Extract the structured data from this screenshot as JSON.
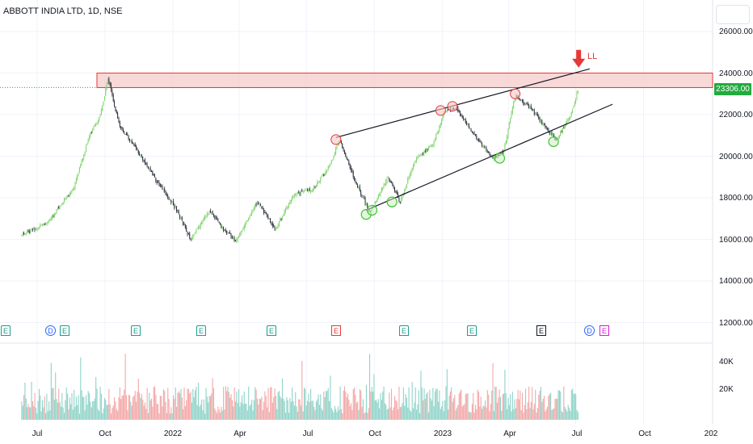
{
  "header": {
    "title": "ABBOTT INDIA LTD, 1D, NSE"
  },
  "price_axis": {
    "labels": [
      "26000.00",
      "24000.00",
      "22000.00",
      "20000.00",
      "18000.00",
      "16000.00",
      "14000.00",
      "12000.00"
    ],
    "current_price": "23306.00"
  },
  "volume_axis": {
    "labels": [
      "40K",
      "20K"
    ]
  },
  "time_axis": {
    "labels": [
      "Jul",
      "Oct",
      "2022",
      "Apr",
      "Jul",
      "Oct",
      "2023",
      "Apr",
      "Jul",
      "Oct",
      "202"
    ]
  },
  "annotation": {
    "sell_label": "LL"
  },
  "events": [
    {
      "kind": "E",
      "style": "green"
    },
    {
      "kind": "D",
      "style": "blue"
    },
    {
      "kind": "E",
      "style": "green"
    },
    {
      "kind": "E",
      "style": "green"
    },
    {
      "kind": "E",
      "style": "green"
    },
    {
      "kind": "E",
      "style": "green"
    },
    {
      "kind": "E",
      "style": "red"
    },
    {
      "kind": "E",
      "style": "green"
    },
    {
      "kind": "E",
      "style": "green"
    },
    {
      "kind": "E",
      "style": "dark"
    },
    {
      "kind": "D",
      "style": "blue"
    },
    {
      "kind": "E",
      "style": "pink"
    }
  ],
  "colors": {
    "up": "#7ed36b",
    "down": "#2a2e39",
    "resistance_fill": "#f7c7c7",
    "resistance_border": "#e53935",
    "price_tag": "#22ab3e",
    "vol_up": "#8fd3c8",
    "vol_down": "#f4a7a7"
  },
  "chart_data": {
    "type": "candlestick",
    "title": "ABBOTT INDIA LTD, 1D, NSE",
    "ylim": [
      11000,
      27000
    ],
    "current_price": 23306,
    "resistance_zone": [
      23300,
      24000
    ],
    "path": [
      {
        "t": "2021-06-10",
        "price": 16200
      },
      {
        "t": "2021-07-15",
        "price": 16800
      },
      {
        "t": "2021-08-20",
        "price": 18500
      },
      {
        "t": "2021-09-10",
        "price": 21000
      },
      {
        "t": "2021-09-25",
        "price": 22000
      },
      {
        "t": "2021-10-05",
        "price": 23800
      },
      {
        "t": "2021-10-20",
        "price": 21500
      },
      {
        "t": "2021-11-15",
        "price": 20200
      },
      {
        "t": "2021-12-10",
        "price": 18800
      },
      {
        "t": "2022-01-05",
        "price": 17500
      },
      {
        "t": "2022-01-25",
        "price": 16000
      },
      {
        "t": "2022-02-20",
        "price": 17400
      },
      {
        "t": "2022-03-10",
        "price": 16500
      },
      {
        "t": "2022-03-28",
        "price": 15900
      },
      {
        "t": "2022-04-25",
        "price": 17800
      },
      {
        "t": "2022-05-20",
        "price": 16500
      },
      {
        "t": "2022-06-15",
        "price": 18200
      },
      {
        "t": "2022-07-10",
        "price": 18400
      },
      {
        "t": "2022-08-01",
        "price": 19500
      },
      {
        "t": "2022-08-15",
        "price": 20800
      },
      {
        "t": "2022-09-05",
        "price": 18800
      },
      {
        "t": "2022-09-25",
        "price": 17300
      },
      {
        "t": "2022-10-20",
        "price": 19000
      },
      {
        "t": "2022-11-05",
        "price": 17800
      },
      {
        "t": "2022-11-25",
        "price": 19800
      },
      {
        "t": "2022-12-20",
        "price": 20600
      },
      {
        "t": "2023-01-05",
        "price": 22200
      },
      {
        "t": "2023-01-20",
        "price": 22300
      },
      {
        "t": "2023-02-10",
        "price": 21200
      },
      {
        "t": "2023-03-10",
        "price": 19900
      },
      {
        "t": "2023-03-25",
        "price": 20200
      },
      {
        "t": "2023-04-10",
        "price": 22900
      },
      {
        "t": "2023-05-01",
        "price": 22300
      },
      {
        "t": "2023-05-25",
        "price": 21200
      },
      {
        "t": "2023-06-05",
        "price": 20800
      },
      {
        "t": "2023-06-25",
        "price": 22000
      },
      {
        "t": "2023-07-05",
        "price": 23306
      }
    ],
    "trendlines": [
      {
        "name": "upper",
        "from": {
          "t": "2022-08-10",
          "price": 20900
        },
        "to": {
          "t": "2023-07-20",
          "price": 24200
        }
      },
      {
        "name": "lower",
        "from": {
          "t": "2022-09-20",
          "price": 17400
        },
        "to": {
          "t": "2023-08-20",
          "price": 22500
        }
      }
    ],
    "swing_highs": [
      {
        "t": "2022-08-10",
        "price": 20800
      },
      {
        "t": "2022-12-30",
        "price": 22200
      },
      {
        "t": "2023-01-15",
        "price": 22400
      },
      {
        "t": "2023-04-10",
        "price": 23000
      }
    ],
    "swing_lows": [
      {
        "t": "2022-09-20",
        "price": 17200
      },
      {
        "t": "2022-09-28",
        "price": 17400
      },
      {
        "t": "2022-10-25",
        "price": 17800
      },
      {
        "t": "2023-03-20",
        "price": 19900
      },
      {
        "t": "2023-06-01",
        "price": 20700
      }
    ],
    "sell_marker": {
      "t": "2023-07-05",
      "price": 24300
    },
    "volume_range_k": [
      0,
      50
    ]
  }
}
